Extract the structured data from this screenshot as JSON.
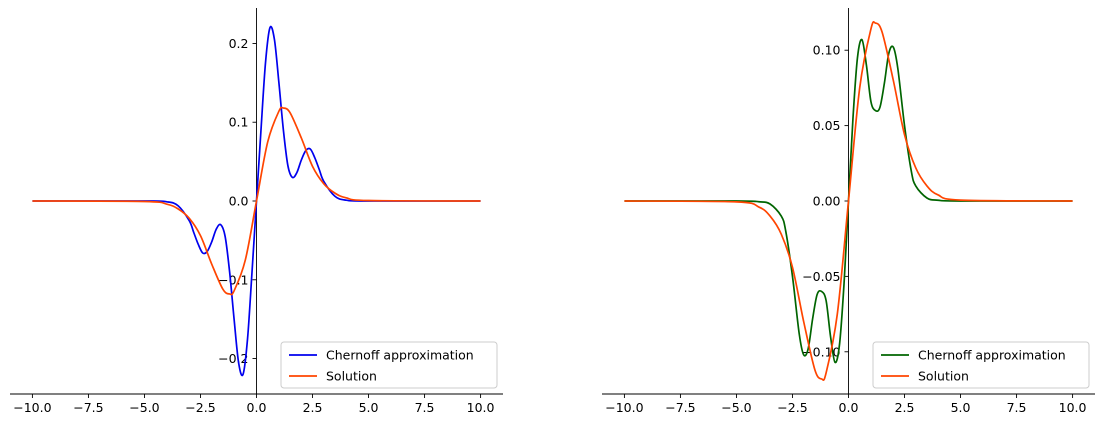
{
  "chart_data": [
    {
      "type": "line",
      "title": "",
      "xlabel": "",
      "ylabel": "",
      "xlim": [
        -11.0,
        11.0
      ],
      "ylim": [
        -0.245,
        0.245
      ],
      "x_ticks": [
        -10.0,
        -7.5,
        -5.0,
        -2.5,
        0.0,
        2.5,
        5.0,
        7.5,
        10.0
      ],
      "x_tick_labels": [
        "−10.0",
        "−7.5",
        "−5.0",
        "−2.5",
        "0.0",
        "2.5",
        "5.0",
        "7.5",
        "10.0"
      ],
      "y_ticks": [
        -0.2,
        -0.1,
        0.0,
        0.1,
        0.2
      ],
      "y_tick_labels": [
        "−0.2",
        "−0.1",
        "0.0",
        "0.1",
        "0.2"
      ],
      "grid": false,
      "spines": "centered",
      "legend_position": "lower-right",
      "series": [
        {
          "name": "Chernoff approximation",
          "color": "#0000ee",
          "x": [
            -10,
            -5,
            -4,
            -3.5,
            -3,
            -2.8,
            -2.6,
            -2.4,
            -2.2,
            -2.0,
            -1.8,
            -1.6,
            -1.4,
            -1.2,
            -1.0,
            -0.8,
            -0.6,
            -0.4,
            -0.2,
            0.0,
            0.2,
            0.4,
            0.6,
            0.8,
            1.0,
            1.2,
            1.4,
            1.6,
            1.8,
            2.0,
            2.2,
            2.4,
            2.6,
            2.8,
            3.0,
            3.5,
            4.0,
            5.0,
            10.0
          ],
          "y": [
            0,
            0,
            -0.001,
            -0.006,
            -0.025,
            -0.04,
            -0.055,
            -0.066,
            -0.064,
            -0.052,
            -0.036,
            -0.03,
            -0.045,
            -0.09,
            -0.15,
            -0.205,
            -0.22,
            -0.175,
            -0.09,
            0.0,
            0.09,
            0.175,
            0.22,
            0.205,
            0.15,
            0.09,
            0.045,
            0.03,
            0.036,
            0.052,
            0.064,
            0.066,
            0.055,
            0.04,
            0.025,
            0.006,
            0.001,
            0,
            0
          ]
        },
        {
          "name": "Solution",
          "color": "#ff4500",
          "x": [
            -10,
            -5,
            -4,
            -3.5,
            -3,
            -2.5,
            -2.0,
            -1.5,
            -1.2,
            -1.0,
            -0.5,
            0.0,
            0.5,
            1.0,
            1.2,
            1.5,
            2.0,
            2.5,
            3.0,
            3.5,
            4.0,
            5.0,
            10.0
          ],
          "y": [
            0,
            -0.0006,
            -0.004,
            -0.01,
            -0.022,
            -0.044,
            -0.08,
            -0.112,
            -0.118,
            -0.114,
            -0.075,
            0.0,
            0.075,
            0.114,
            0.118,
            0.112,
            0.08,
            0.044,
            0.022,
            0.01,
            0.004,
            0.0006,
            0
          ]
        }
      ]
    },
    {
      "type": "line",
      "title": "",
      "xlabel": "",
      "ylabel": "",
      "xlim": [
        -11.0,
        11.0
      ],
      "ylim": [
        -0.128,
        0.128
      ],
      "x_ticks": [
        -10.0,
        -7.5,
        -5.0,
        -2.5,
        0.0,
        2.5,
        5.0,
        7.5,
        10.0
      ],
      "x_tick_labels": [
        "−10.0",
        "−7.5",
        "−5.0",
        "−2.5",
        "0.0",
        "2.5",
        "5.0",
        "7.5",
        "10.0"
      ],
      "y_ticks": [
        -0.1,
        -0.05,
        0.0,
        0.05,
        0.1
      ],
      "y_tick_labels": [
        "−0.10",
        "−0.05",
        "0.00",
        "0.05",
        "0.10"
      ],
      "grid": false,
      "spines": "centered",
      "legend_position": "lower-right",
      "series": [
        {
          "name": "Chernoff approximation",
          "color": "#006400",
          "x": [
            -10,
            -5,
            -4,
            -3.5,
            -3.0,
            -2.8,
            -2.5,
            -2.2,
            -2.0,
            -1.8,
            -1.6,
            -1.4,
            -1.2,
            -1.0,
            -0.8,
            -0.6,
            -0.4,
            -0.2,
            0.0,
            0.2,
            0.4,
            0.6,
            0.8,
            1.0,
            1.2,
            1.4,
            1.6,
            1.8,
            2.0,
            2.2,
            2.5,
            2.8,
            3.0,
            3.5,
            4.0,
            5.0,
            10.0
          ],
          "y": [
            0,
            0,
            -0.0005,
            -0.002,
            -0.01,
            -0.02,
            -0.05,
            -0.088,
            -0.102,
            -0.098,
            -0.078,
            -0.062,
            -0.06,
            -0.066,
            -0.09,
            -0.107,
            -0.095,
            -0.055,
            0.0,
            0.055,
            0.095,
            0.107,
            0.09,
            0.066,
            0.06,
            0.062,
            0.078,
            0.098,
            0.102,
            0.088,
            0.05,
            0.02,
            0.01,
            0.002,
            0.0005,
            0,
            0
          ]
        },
        {
          "name": "Solution",
          "color": "#ff4500",
          "x": [
            -10,
            -5,
            -4,
            -3.5,
            -3,
            -2.5,
            -2.0,
            -1.5,
            -1.2,
            -1.0,
            -0.5,
            0.0,
            0.5,
            1.0,
            1.2,
            1.5,
            2.0,
            2.5,
            3.0,
            3.5,
            4.0,
            5.0,
            10.0
          ],
          "y": [
            0,
            -0.0006,
            -0.004,
            -0.01,
            -0.022,
            -0.044,
            -0.08,
            -0.112,
            -0.118,
            -0.114,
            -0.075,
            0.0,
            0.075,
            0.114,
            0.118,
            0.112,
            0.08,
            0.044,
            0.022,
            0.01,
            0.004,
            0.0006,
            0
          ]
        }
      ]
    }
  ]
}
